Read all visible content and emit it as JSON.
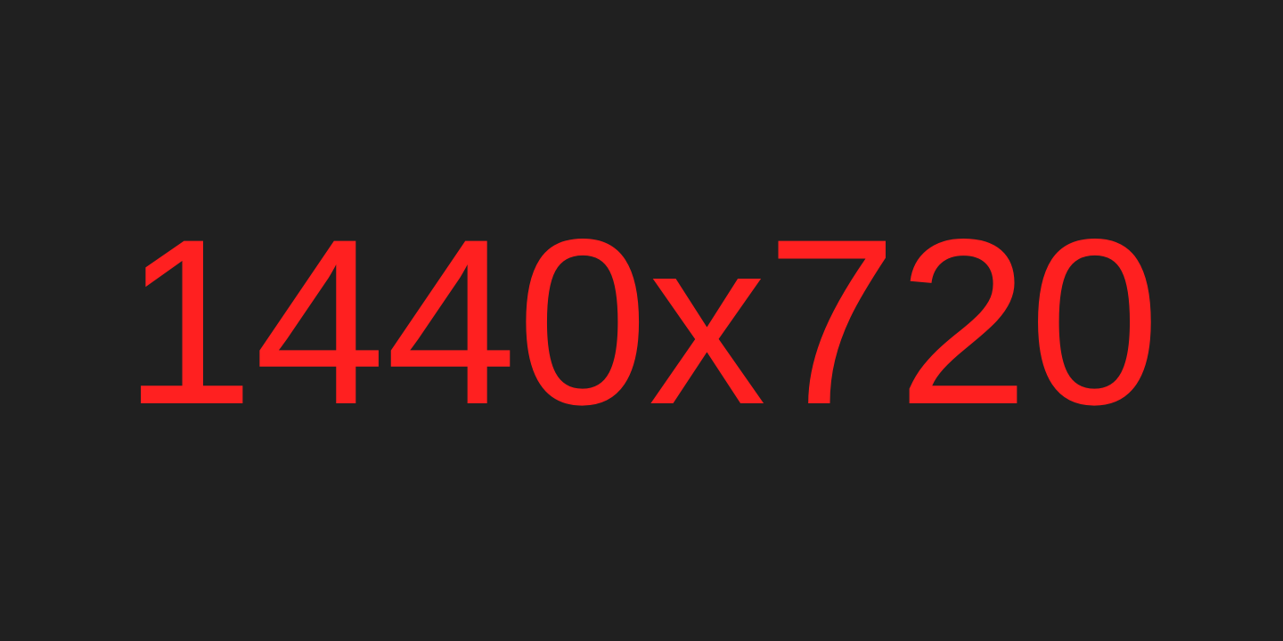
{
  "placeholder": {
    "text": "1440x720",
    "text_color": "#ff2020",
    "background_color": "#202020"
  }
}
